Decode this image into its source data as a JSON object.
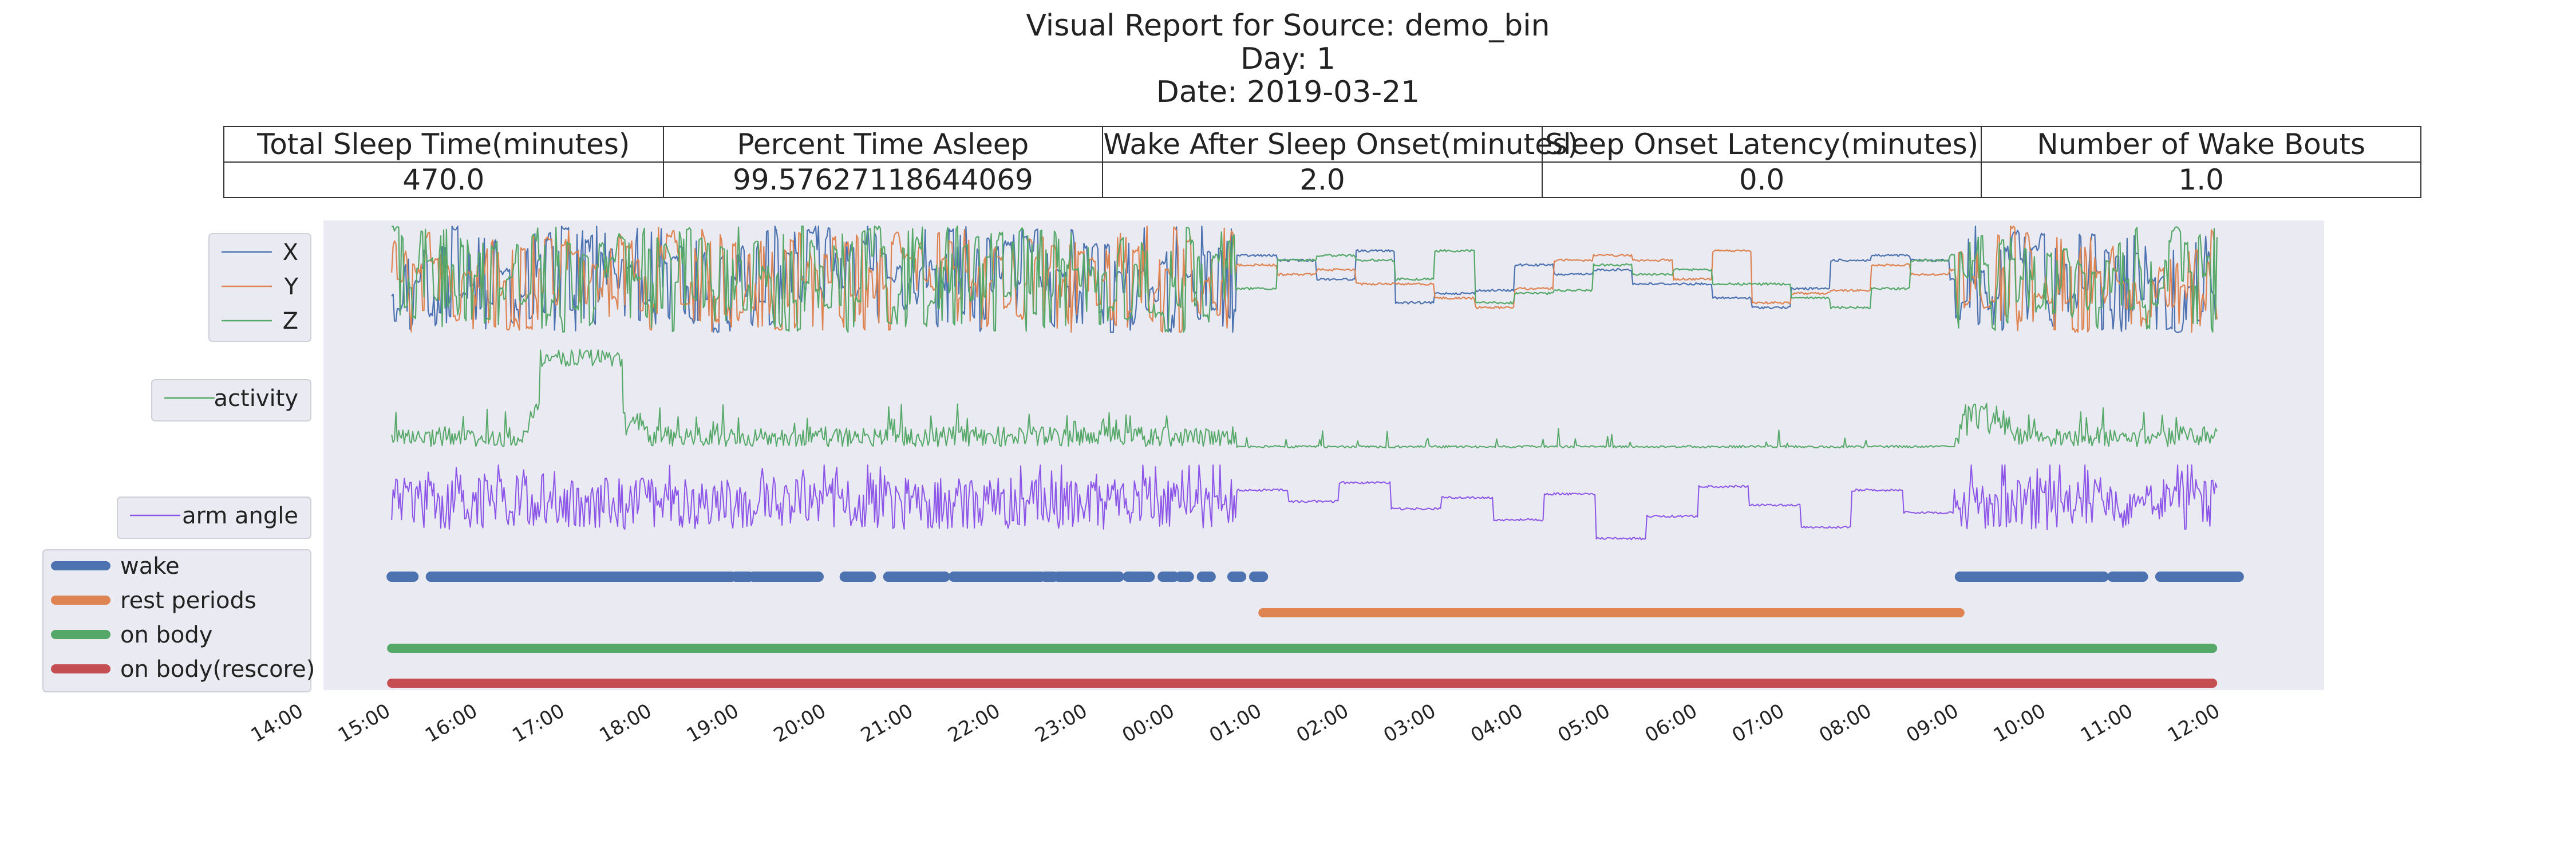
{
  "header": {
    "title_line1": "Visual Report for Source: demo_bin",
    "title_line2": "Day: 1",
    "title_line3": "Date: 2019-03-21"
  },
  "summary_table": {
    "headers": [
      "Total Sleep Time(minutes)",
      "Percent Time Asleep",
      "Wake After Sleep Onset(minutes)",
      "Sleep Onset Latency(minutes)",
      "Number of Wake Bouts"
    ],
    "values": [
      "470.0",
      "99.57627118644069",
      "2.0",
      "0.0",
      "1.0"
    ]
  },
  "colors": {
    "background": "#eaeaf2",
    "x": "#4c72b0",
    "y": "#dd8452",
    "z": "#55a868",
    "activity": "#55a868",
    "arm_angle": "#8c55e8",
    "wake": "#4c72b0",
    "rest": "#dd8452",
    "on_body": "#55a868",
    "on_body_rescore": "#c44e52"
  },
  "chart_data": {
    "type": "line",
    "x_tick_labels": [
      "14:00",
      "15:00",
      "16:00",
      "17:00",
      "18:00",
      "19:00",
      "20:00",
      "21:00",
      "22:00",
      "23:00",
      "00:00",
      "01:00",
      "02:00",
      "03:00",
      "04:00",
      "05:00",
      "06:00",
      "07:00",
      "08:00",
      "09:00",
      "10:00",
      "11:00",
      "12:00"
    ],
    "x_range_hours": [
      14,
      36.5
    ],
    "data_start_hour": 15.0,
    "data_end_hour": 35.95,
    "grid": false,
    "legends": [
      {
        "entries": [
          "X",
          "Y",
          "Z"
        ]
      },
      {
        "entries": [
          "activity"
        ]
      },
      {
        "entries": [
          "arm angle"
        ]
      },
      {
        "entries": [
          "wake",
          "rest periods",
          "on body",
          "on body(rescore)"
        ]
      }
    ],
    "series_notes": {
      "X": "raw accelerometer X, noisy while active, step-like during rest",
      "Y": "raw accelerometer Y",
      "Z": "raw accelerometer Z",
      "activity": "activity level with a plateau near 17:00 and a rise near 09:00",
      "arm angle": "arm angle trace, step-like during the rest period"
    },
    "wake_segments_hours": [
      [
        15.0,
        15.25
      ],
      [
        15.45,
        18.9
      ],
      [
        18.95,
        19.1
      ],
      [
        19.15,
        19.9
      ],
      [
        20.2,
        20.5
      ],
      [
        20.7,
        21.35
      ],
      [
        21.45,
        22.45
      ],
      [
        22.5,
        22.6
      ],
      [
        22.65,
        23.35
      ],
      [
        23.45,
        23.7
      ],
      [
        23.85,
        23.98
      ],
      [
        24.05,
        24.15
      ],
      [
        24.3,
        24.4
      ],
      [
        24.65,
        24.75
      ],
      [
        24.9,
        25.0
      ],
      [
        33.0,
        34.65
      ],
      [
        34.75,
        35.1
      ],
      [
        35.3,
        36.2
      ]
    ],
    "rest_period_hours": [
      25.0,
      33.0
    ],
    "on_body_hours": [
      15.0,
      35.9
    ],
    "on_body_rescore_hours": [
      15.0,
      35.9
    ]
  }
}
